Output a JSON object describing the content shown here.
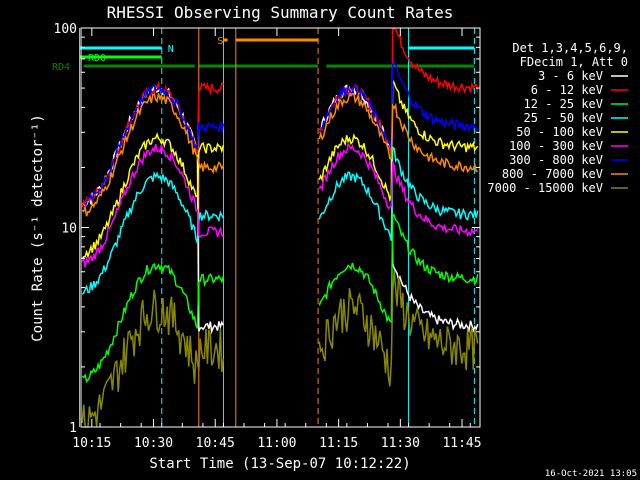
{
  "chart_data": {
    "type": "line",
    "title": "RHESSI Observing Summary Count Rates",
    "xlabel": "Start Time (13-Sep-07 10:12:22)",
    "ylabel": "Count Rate (s⁻¹ detector⁻¹)",
    "y_scale": "log",
    "ylim": [
      1,
      100
    ],
    "xlim_minutes_after_10:12:22": [
      0,
      97
    ],
    "x_ticks": [
      "10:15",
      "10:30",
      "10:45",
      "11:00",
      "11:15",
      "11:30",
      "11:45"
    ],
    "y_ticks": [
      "1",
      "10",
      "100"
    ],
    "timestamp": "16-Oct-2021 13:05",
    "legend_header": [
      "Det 1,3,4,5,6,9,",
      "FDecim 1, Att 0"
    ],
    "flags": [
      {
        "label": "N",
        "color": "#00ffff",
        "segments": [
          [
            "10:12",
            "10:32"
          ],
          [
            "11:32",
            "11:48"
          ]
        ]
      },
      {
        "label": "RD0",
        "color": "#00ff00",
        "segments": [
          [
            "10:12",
            "10:32"
          ]
        ]
      },
      {
        "label": "RD4",
        "color": "#008800",
        "segments": [
          [
            "10:13",
            "10:40"
          ],
          [
            "10:41",
            "11:10"
          ],
          [
            "11:12",
            "11:48"
          ]
        ]
      },
      {
        "label": "S",
        "color": "#ff8800",
        "segments": [
          [
            "10:47",
            "10:48"
          ],
          [
            "10:50",
            "11:10"
          ]
        ]
      }
    ],
    "series": [
      {
        "name": "3 - 6 keV",
        "color": "#ffffff"
      },
      {
        "name": "6 - 12 keV",
        "color": "#ff0000"
      },
      {
        "name": "12 - 25 keV",
        "color": "#00ff00"
      },
      {
        "name": "25 - 50 keV",
        "color": "#00ffff"
      },
      {
        "name": "50 - 100 keV",
        "color": "#ffff00"
      },
      {
        "name": "100 - 300 keV",
        "color": "#ff00ff"
      },
      {
        "name": "300 - 800 keV",
        "color": "#0000ff"
      },
      {
        "name": "800 - 7000 keV",
        "color": "#ff8800"
      },
      {
        "name": "7000 - 15000 keV",
        "color": "#888800"
      }
    ]
  }
}
